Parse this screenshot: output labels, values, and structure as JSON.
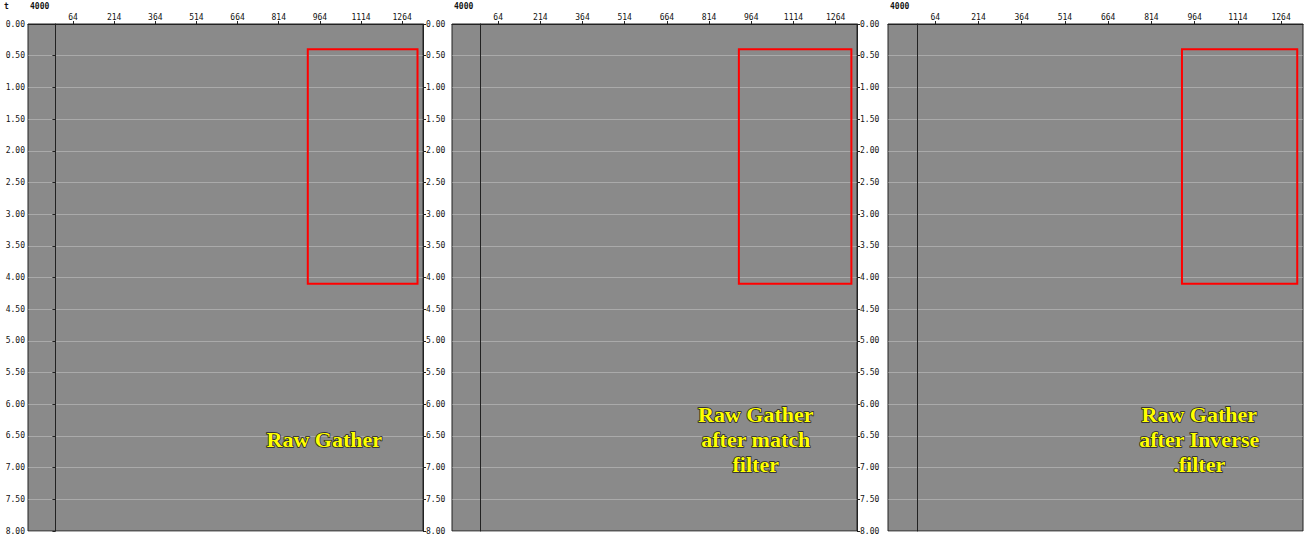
{
  "chart_data": [
    {
      "type": "seismic",
      "title": "Raw Gather",
      "xlabel": "4000",
      "ylabel": "t",
      "xlim": [
        -100,
        1340
      ],
      "xticks": [
        64,
        214,
        364,
        514,
        664,
        814,
        964,
        1114,
        1264
      ],
      "ylim": [
        0,
        8
      ],
      "yticks": [
        {
          "value": 0,
          "label": "0.00"
        },
        {
          "value": 0.5,
          "label": "0.50"
        },
        {
          "value": 1,
          "label": "1.00"
        },
        {
          "value": 1.5,
          "label": "1.50"
        },
        {
          "value": 2,
          "label": "2.00"
        },
        {
          "value": 2.5,
          "label": "2.50"
        },
        {
          "value": 3,
          "label": "3.00"
        },
        {
          "value": 3.5,
          "label": "3.50"
        },
        {
          "value": 4,
          "label": "4.00"
        },
        {
          "value": 4.5,
          "label": "4.50"
        },
        {
          "value": 5,
          "label": "5.00"
        },
        {
          "value": 5.5,
          "label": "5.50"
        },
        {
          "value": 6,
          "label": "6.00"
        },
        {
          "value": 6.5,
          "label": "6.50"
        },
        {
          "value": 7,
          "label": "7.00"
        },
        {
          "value": 7.5,
          "label": "7.50"
        },
        {
          "value": 8,
          "label": "8.00"
        }
      ],
      "grid": true,
      "highlight": {
        "x": [
          920,
          1320
        ],
        "y": [
          0.4,
          4.1
        ],
        "color": "#ff0000"
      }
    },
    {
      "type": "seismic",
      "title": "Raw Gather after match filter",
      "xlabel": "4000",
      "xlim": [
        -100,
        1340
      ],
      "xticks": [
        64,
        214,
        364,
        514,
        664,
        814,
        964,
        1114,
        1264
      ],
      "ylim": [
        0,
        8
      ],
      "yticks": [
        {
          "value": 0,
          "label": "0.00"
        },
        {
          "value": 0.5,
          "label": "0.50"
        },
        {
          "value": 1,
          "label": "1.00"
        },
        {
          "value": 1.5,
          "label": "1.50"
        },
        {
          "value": 2,
          "label": "2.00"
        },
        {
          "value": 2.5,
          "label": "2.50"
        },
        {
          "value": 3,
          "label": "3.00"
        },
        {
          "value": 3.5,
          "label": "3.50"
        },
        {
          "value": 4,
          "label": "4.00"
        },
        {
          "value": 4.5,
          "label": "4.50"
        },
        {
          "value": 5,
          "label": "5.00"
        },
        {
          "value": 5.5,
          "label": "5.50"
        },
        {
          "value": 6,
          "label": "6.00"
        },
        {
          "value": 6.5,
          "label": "6.50"
        },
        {
          "value": 7,
          "label": "7.00"
        },
        {
          "value": 7.5,
          "label": "7.50"
        },
        {
          "value": 8,
          "label": "8.00"
        }
      ],
      "grid": true,
      "highlight": {
        "x": [
          920,
          1320
        ],
        "y": [
          0.4,
          4.1
        ],
        "color": "#ff0000"
      }
    },
    {
      "type": "seismic",
      "title": "Raw Gather after Inverse .filter",
      "xlabel": "4000",
      "xlim": [
        -100,
        1340
      ],
      "xticks": [
        64,
        214,
        364,
        514,
        664,
        814,
        964,
        1114,
        1264
      ],
      "ylim": [
        0,
        8
      ],
      "yticks": [
        {
          "value": 0,
          "label": "0.00"
        },
        {
          "value": 0.5,
          "label": "0.50"
        },
        {
          "value": 1,
          "label": "1.00"
        },
        {
          "value": 1.5,
          "label": "1.50"
        },
        {
          "value": 2,
          "label": "2.00"
        },
        {
          "value": 2.5,
          "label": "2.50"
        },
        {
          "value": 3,
          "label": "3.00"
        },
        {
          "value": 3.5,
          "label": "3.50"
        },
        {
          "value": 4,
          "label": "4.00"
        },
        {
          "value": 4.5,
          "label": "4.50"
        },
        {
          "value": 5,
          "label": "5.00"
        },
        {
          "value": 5.5,
          "label": "5.50"
        },
        {
          "value": 6,
          "label": "6.00"
        },
        {
          "value": 6.5,
          "label": "6.50"
        },
        {
          "value": 7,
          "label": "7.00"
        },
        {
          "value": 7.5,
          "label": "7.50"
        },
        {
          "value": 8,
          "label": "8.00"
        }
      ],
      "grid": true,
      "highlight": {
        "x": [
          920,
          1320
        ],
        "y": [
          0.4,
          4.1
        ],
        "color": "#ff0000"
      }
    }
  ]
}
